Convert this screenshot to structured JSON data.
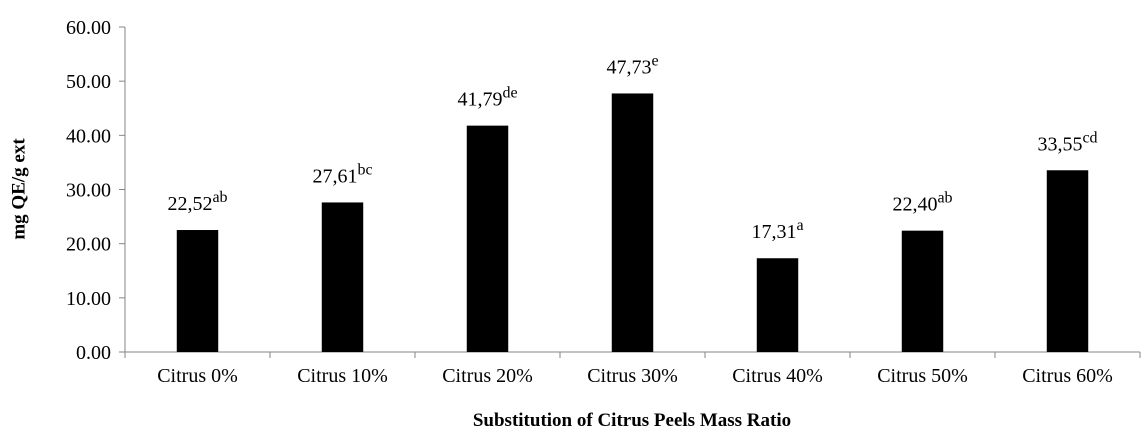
{
  "chart_data": {
    "type": "bar",
    "x_label": "Substitution of Citrus Peels Mass Ratio",
    "y_label": "mg QE/g ext",
    "categories": [
      "Citrus 0%",
      "Citrus 10%",
      "Citrus 20%",
      "Citrus 30%",
      "Citrus 40%",
      "Citrus 50%",
      "Citrus 60%"
    ],
    "values": [
      22.52,
      27.61,
      41.79,
      47.73,
      17.31,
      22.4,
      33.55
    ],
    "value_labels": [
      "22,52",
      "27,61",
      "41,79",
      "47,73",
      "17,31",
      "22,40",
      "33,55"
    ],
    "significance_letters": [
      "ab",
      "bc",
      "de",
      "e",
      "a",
      "ab",
      "cd"
    ],
    "color": "#000000",
    "ylim": [
      0,
      60
    ],
    "yticks": [
      {
        "value": 0,
        "label": "0.00"
      },
      {
        "value": 10,
        "label": "10.00"
      },
      {
        "value": 20,
        "label": "20.00"
      },
      {
        "value": 30,
        "label": "30.00"
      },
      {
        "value": 40,
        "label": "40.00"
      },
      {
        "value": 50,
        "label": "50.00"
      },
      {
        "value": 60,
        "label": "60.00"
      }
    ],
    "grid": false
  }
}
